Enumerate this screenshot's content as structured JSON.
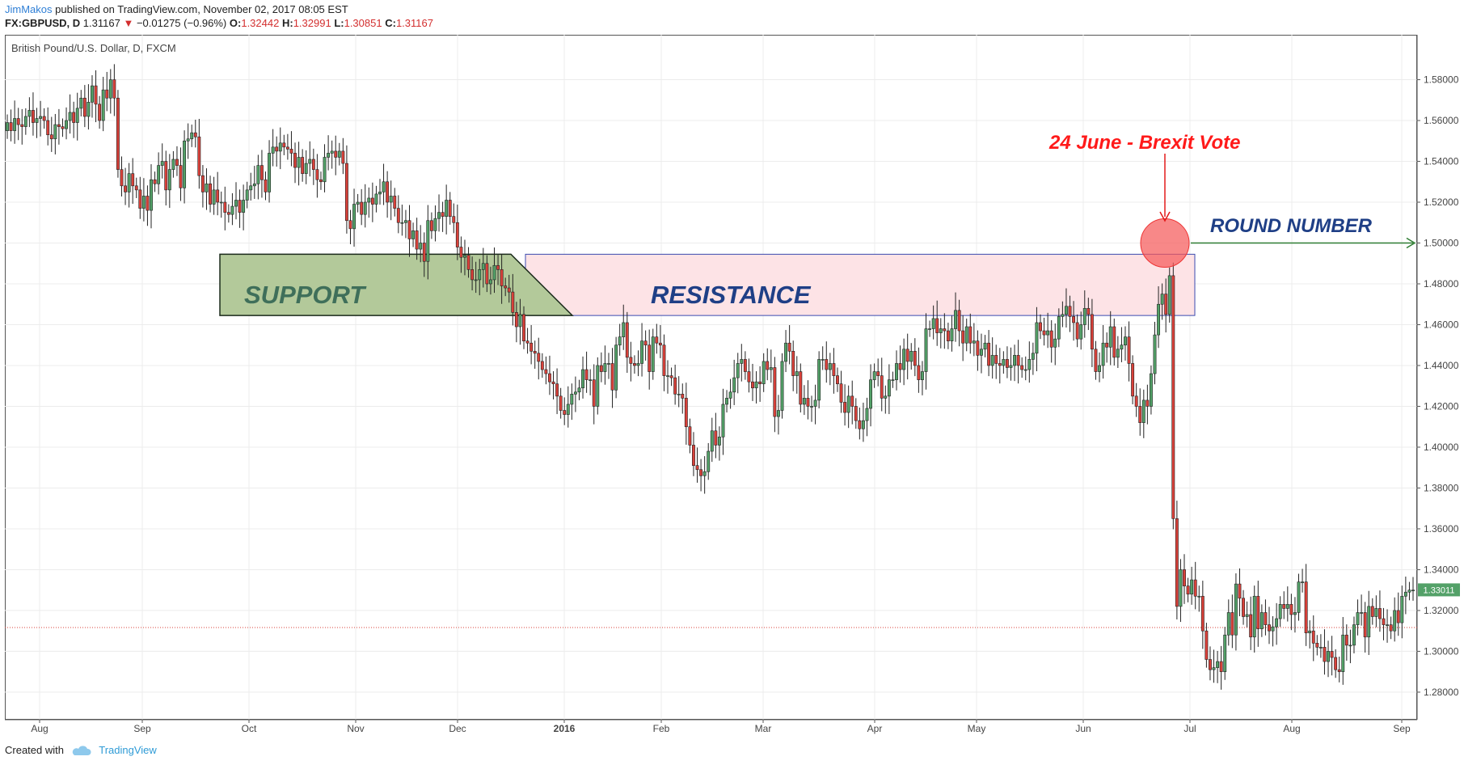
{
  "header": {
    "author": "JimMakos",
    "published": "published on TradingView.com, November 02, 2017 08:05 EST",
    "symbol": "FX:GBPUSD, D",
    "last": "1.31167",
    "arrow": "▼",
    "change": "−0.01275 (−0.96%)",
    "o_label": "O:",
    "o_val": "1.32442",
    "h_label": "H:",
    "h_val": "1.32991",
    "l_label": "L:",
    "l_val": "1.30851",
    "c_label": "C:",
    "c_val": "1.31167"
  },
  "footer": {
    "created": "Created with",
    "brand": "TradingView"
  },
  "colors": {
    "up": "#53a168",
    "down": "#d9413a",
    "resistance_fill": "#fde3e6",
    "resistance_stroke": "#3b4bb0",
    "support_fill": "#b3c99a",
    "annot_red": "#ff1a1a",
    "annot_blue": "#1f3f86",
    "arrow_green": "#2e7d32"
  },
  "chart_data": {
    "type": "candlestick",
    "title": "British Pound/U.S. Dollar, D, FXCM",
    "x_labels": [
      "Aug",
      "Sep",
      "Oct",
      "Nov",
      "Dec",
      "2016",
      "Feb",
      "Mar",
      "Apr",
      "May",
      "Jun",
      "Jul",
      "Aug",
      "Sep"
    ],
    "y_ticks": [
      "1.28000",
      "1.30000",
      "1.32000",
      "1.34000",
      "1.36000",
      "1.38000",
      "1.40000",
      "1.42000",
      "1.44000",
      "1.46000",
      "1.48000",
      "1.50000",
      "1.52000",
      "1.54000",
      "1.56000",
      "1.58000"
    ],
    "ylim": [
      1.2665,
      1.602
    ],
    "last_price_label": "1.33011",
    "reference_line": 1.31167,
    "closes": [
      1.559,
      1.555,
      1.561,
      1.558,
      1.557,
      1.562,
      1.565,
      1.559,
      1.561,
      1.562,
      1.56,
      1.553,
      1.551,
      1.558,
      1.557,
      1.556,
      1.56,
      1.564,
      1.559,
      1.566,
      1.571,
      1.562,
      1.569,
      1.577,
      1.568,
      1.56,
      1.575,
      1.571,
      1.58,
      1.571,
      1.536,
      1.528,
      1.525,
      1.534,
      1.528,
      1.526,
      1.517,
      1.523,
      1.516,
      1.531,
      1.529,
      1.538,
      1.54,
      1.526,
      1.536,
      1.541,
      1.538,
      1.527,
      1.55,
      1.551,
      1.554,
      1.552,
      1.533,
      1.525,
      1.529,
      1.519,
      1.526,
      1.52,
      1.52,
      1.515,
      1.514,
      1.518,
      1.521,
      1.515,
      1.521,
      1.526,
      1.528,
      1.529,
      1.538,
      1.531,
      1.525,
      1.544,
      1.547,
      1.545,
      1.549,
      1.547,
      1.546,
      1.544,
      1.537,
      1.542,
      1.534,
      1.539,
      1.541,
      1.536,
      1.531,
      1.53,
      1.542,
      1.544,
      1.545,
      1.542,
      1.545,
      1.539,
      1.511,
      1.507,
      1.519,
      1.52,
      1.514,
      1.52,
      1.522,
      1.519,
      1.524,
      1.525,
      1.53,
      1.52,
      1.523,
      1.517,
      1.51,
      1.51,
      1.511,
      1.502,
      1.506,
      1.497,
      1.5,
      1.491,
      1.511,
      1.506,
      1.512,
      1.515,
      1.513,
      1.521,
      1.513,
      1.51,
      1.498,
      1.493,
      1.494,
      1.487,
      1.482,
      1.482,
      1.487,
      1.49,
      1.48,
      1.482,
      1.489,
      1.487,
      1.479,
      1.478,
      1.476,
      1.466,
      1.459,
      1.465,
      1.452,
      1.451,
      1.447,
      1.446,
      1.442,
      1.438,
      1.436,
      1.432,
      1.431,
      1.425,
      1.418,
      1.416,
      1.421,
      1.426,
      1.427,
      1.429,
      1.438,
      1.433,
      1.433,
      1.42,
      1.44,
      1.437,
      1.441,
      1.441,
      1.428,
      1.45,
      1.454,
      1.461,
      1.444,
      1.441,
      1.44,
      1.441,
      1.452,
      1.45,
      1.437,
      1.454,
      1.451,
      1.45,
      1.435,
      1.435,
      1.434,
      1.426,
      1.426,
      1.424,
      1.41,
      1.401,
      1.391,
      1.389,
      1.386,
      1.388,
      1.398,
      1.408,
      1.401,
      1.405,
      1.421,
      1.424,
      1.427,
      1.434,
      1.441,
      1.443,
      1.437,
      1.432,
      1.429,
      1.432,
      1.431,
      1.442,
      1.438,
      1.439,
      1.415,
      1.418,
      1.442,
      1.451,
      1.447,
      1.435,
      1.437,
      1.421,
      1.424,
      1.42,
      1.42,
      1.423,
      1.443,
      1.443,
      1.438,
      1.441,
      1.435,
      1.431,
      1.422,
      1.417,
      1.425,
      1.42,
      1.413,
      1.409,
      1.413,
      1.419,
      1.433,
      1.437,
      1.435,
      1.424,
      1.425,
      1.433,
      1.433,
      1.441,
      1.438,
      1.448,
      1.442,
      1.447,
      1.44,
      1.433,
      1.437,
      1.458,
      1.458,
      1.463,
      1.456,
      1.458,
      1.457,
      1.452,
      1.458,
      1.467,
      1.457,
      1.451,
      1.459,
      1.451,
      1.452,
      1.445,
      1.448,
      1.451,
      1.44,
      1.445,
      1.441,
      1.44,
      1.443,
      1.439,
      1.44,
      1.445,
      1.44,
      1.438,
      1.438,
      1.443,
      1.446,
      1.461,
      1.457,
      1.455,
      1.457,
      1.449,
      1.453,
      1.464,
      1.465,
      1.469,
      1.464,
      1.461,
      1.453,
      1.46,
      1.468,
      1.465,
      1.448,
      1.437,
      1.44,
      1.451,
      1.449,
      1.459,
      1.444,
      1.448,
      1.45,
      1.454,
      1.441,
      1.425,
      1.42,
      1.412,
      1.423,
      1.42,
      1.436,
      1.455,
      1.47,
      1.475,
      1.465,
      1.484,
      1.365,
      1.322,
      1.34,
      1.332,
      1.328,
      1.335,
      1.327,
      1.327,
      1.31,
      1.296,
      1.291,
      1.292,
      1.295,
      1.29,
      1.308,
      1.319,
      1.308,
      1.333,
      1.326,
      1.317,
      1.318,
      1.307,
      1.327,
      1.311,
      1.319,
      1.313,
      1.31,
      1.312,
      1.316,
      1.323,
      1.321,
      1.323,
      1.318,
      1.319,
      1.334,
      1.334,
      1.309,
      1.31,
      1.304,
      1.302,
      1.302,
      1.295,
      1.3,
      1.297,
      1.291,
      1.29,
      1.308,
      1.303,
      1.303,
      1.313,
      1.319,
      1.319,
      1.307,
      1.322,
      1.317,
      1.321,
      1.316,
      1.313,
      1.313,
      1.31,
      1.32,
      1.314,
      1.327,
      1.329,
      1.33,
      1.33
    ]
  },
  "annotations": {
    "support": "SUPPORT",
    "resistance": "RESISTANCE",
    "brexit": "24 June - Brexit Vote",
    "round": "ROUND NUMBER"
  }
}
